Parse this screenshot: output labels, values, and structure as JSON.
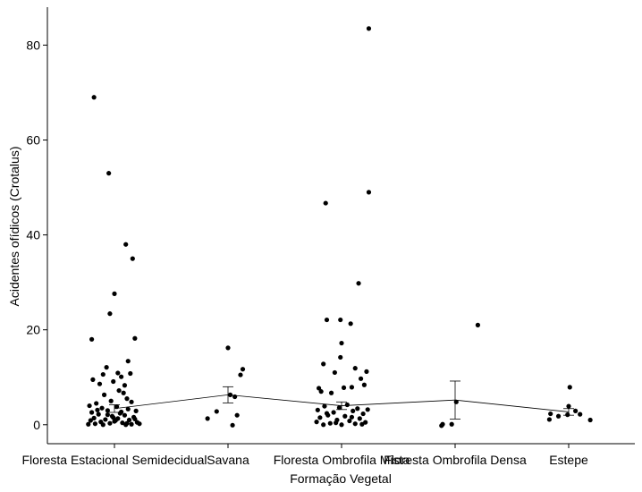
{
  "chart_data": {
    "type": "scatter",
    "xlabel": "Formação Vegetal",
    "ylabel": "Acidentes ofídicos (Crotalus)",
    "categories": [
      "Floresta Estacional Semidecidual",
      "Savana",
      "Floresta Ombrofila Mista",
      "Floresta Ombrofila Densa",
      "Estepe"
    ],
    "yticks": [
      0,
      20,
      40,
      60,
      80
    ],
    "ylim": [
      -4,
      88
    ],
    "grid": false,
    "mean_line": {
      "means": [
        3.4,
        6.3,
        4.0,
        5.2,
        2.7
      ],
      "ci_low": [
        2.6,
        4.6,
        3.2,
        1.2,
        2.0
      ],
      "ci_high": [
        4.2,
        8.0,
        4.8,
        9.2,
        3.4
      ]
    },
    "points": [
      {
        "cat": 0,
        "dx": -0.18,
        "y": 69
      },
      {
        "cat": 0,
        "dx": -0.05,
        "y": 53
      },
      {
        "cat": 0,
        "dx": 0.1,
        "y": 38
      },
      {
        "cat": 0,
        "dx": 0.16,
        "y": 35
      },
      {
        "cat": 0,
        "dx": 0.0,
        "y": 27.6
      },
      {
        "cat": 0,
        "dx": -0.04,
        "y": 23.4
      },
      {
        "cat": 0,
        "dx": -0.2,
        "y": 18
      },
      {
        "cat": 0,
        "dx": 0.18,
        "y": 18.2
      },
      {
        "cat": 0,
        "dx": 0.12,
        "y": 13.4
      },
      {
        "cat": 0,
        "dx": -0.07,
        "y": 12.1
      },
      {
        "cat": 0,
        "dx": -0.1,
        "y": 10.6
      },
      {
        "cat": 0,
        "dx": 0.03,
        "y": 10.9
      },
      {
        "cat": 0,
        "dx": 0.14,
        "y": 10.8
      },
      {
        "cat": 0,
        "dx": -0.19,
        "y": 9.5
      },
      {
        "cat": 0,
        "dx": -0.01,
        "y": 9.1
      },
      {
        "cat": 0,
        "dx": 0.06,
        "y": 10.1
      },
      {
        "cat": 0,
        "dx": -0.13,
        "y": 8.6
      },
      {
        "cat": 0,
        "dx": 0.09,
        "y": 8.3
      },
      {
        "cat": 0,
        "dx": 0.04,
        "y": 7.2
      },
      {
        "cat": 0,
        "dx": 0.08,
        "y": 6.7
      },
      {
        "cat": 0,
        "dx": -0.09,
        "y": 6.3
      },
      {
        "cat": 0,
        "dx": 0.11,
        "y": 5.5
      },
      {
        "cat": 0,
        "dx": -0.03,
        "y": 5.0
      },
      {
        "cat": 0,
        "dx": -0.16,
        "y": 4.5
      },
      {
        "cat": 0,
        "dx": 0.15,
        "y": 4.8
      },
      {
        "cat": 0,
        "dx": -0.22,
        "y": 4.0
      },
      {
        "cat": 0,
        "dx": 0.02,
        "y": 3.8
      },
      {
        "cat": 0,
        "dx": -0.11,
        "y": 3.5
      },
      {
        "cat": 0,
        "dx": 0.12,
        "y": 3.3
      },
      {
        "cat": 0,
        "dx": -0.06,
        "y": 3.0
      },
      {
        "cat": 0,
        "dx": 0.19,
        "y": 2.9
      },
      {
        "cat": 0,
        "dx": -0.2,
        "y": 2.6
      },
      {
        "cat": 0,
        "dx": 0.05,
        "y": 2.4
      },
      {
        "cat": 0,
        "dx": -0.14,
        "y": 2.2
      },
      {
        "cat": 0,
        "dx": 0.09,
        "y": 2.0
      },
      {
        "cat": 0,
        "dx": -0.02,
        "y": 1.8
      },
      {
        "cat": 0,
        "dx": 0.17,
        "y": 1.6
      },
      {
        "cat": 0,
        "dx": -0.18,
        "y": 1.4
      },
      {
        "cat": 0,
        "dx": 0.03,
        "y": 1.3
      },
      {
        "cat": 0,
        "dx": -0.08,
        "y": 1.1
      },
      {
        "cat": 0,
        "dx": 0.13,
        "y": 1.0
      },
      {
        "cat": 0,
        "dx": -0.21,
        "y": 0.9
      },
      {
        "cat": 0,
        "dx": 0.0,
        "y": 0.7
      },
      {
        "cat": 0,
        "dx": -0.12,
        "y": 0.6
      },
      {
        "cat": 0,
        "dx": 0.2,
        "y": 0.5
      },
      {
        "cat": 0,
        "dx": 0.07,
        "y": 0.4
      },
      {
        "cat": 0,
        "dx": -0.04,
        "y": 0.3
      },
      {
        "cat": 0,
        "dx": -0.17,
        "y": 0.2
      },
      {
        "cat": 0,
        "dx": 0.15,
        "y": 0.1
      },
      {
        "cat": 0,
        "dx": -0.1,
        "y": 0.0
      },
      {
        "cat": 0,
        "dx": 0.1,
        "y": 0.0
      },
      {
        "cat": 0,
        "dx": -0.23,
        "y": 0.1
      },
      {
        "cat": 0,
        "dx": 0.22,
        "y": 0.2
      },
      {
        "cat": 0,
        "dx": -0.01,
        "y": 1.5
      },
      {
        "cat": 0,
        "dx": 0.06,
        "y": 2.7
      },
      {
        "cat": 0,
        "dx": -0.15,
        "y": 3.1
      },
      {
        "cat": 0,
        "dx": 0.01,
        "y": 0.9
      },
      {
        "cat": 0,
        "dx": 0.18,
        "y": 1.2
      },
      {
        "cat": 0,
        "dx": -0.06,
        "y": 2.1
      },
      {
        "cat": 0,
        "dx": 0.11,
        "y": 0.3
      },
      {
        "cat": 1,
        "dx": -0.18,
        "y": 1.3
      },
      {
        "cat": 1,
        "dx": -0.1,
        "y": 2.8
      },
      {
        "cat": 1,
        "dx": 0.0,
        "y": 16.2
      },
      {
        "cat": 1,
        "dx": 0.13,
        "y": 11.7
      },
      {
        "cat": 1,
        "dx": 0.11,
        "y": 10.5
      },
      {
        "cat": 1,
        "dx": 0.02,
        "y": 6.3
      },
      {
        "cat": 1,
        "dx": 0.06,
        "y": 5.9
      },
      {
        "cat": 1,
        "dx": 0.08,
        "y": 2.0
      },
      {
        "cat": 1,
        "dx": 0.04,
        "y": -0.1
      },
      {
        "cat": 2,
        "dx": 0.24,
        "y": 83.5
      },
      {
        "cat": 2,
        "dx": 0.24,
        "y": 49
      },
      {
        "cat": 2,
        "dx": -0.14,
        "y": 46.7
      },
      {
        "cat": 2,
        "dx": 0.15,
        "y": 29.8
      },
      {
        "cat": 2,
        "dx": -0.13,
        "y": 22.1
      },
      {
        "cat": 2,
        "dx": -0.01,
        "y": 22.1
      },
      {
        "cat": 2,
        "dx": 0.08,
        "y": 21.3
      },
      {
        "cat": 2,
        "dx": 0.0,
        "y": 17.2
      },
      {
        "cat": 2,
        "dx": -0.01,
        "y": 14.2
      },
      {
        "cat": 2,
        "dx": -0.16,
        "y": 12.8
      },
      {
        "cat": 2,
        "dx": 0.12,
        "y": 11.9
      },
      {
        "cat": 2,
        "dx": -0.06,
        "y": 11.0
      },
      {
        "cat": 2,
        "dx": 0.22,
        "y": 11.2
      },
      {
        "cat": 2,
        "dx": 0.17,
        "y": 9.7
      },
      {
        "cat": 2,
        "dx": -0.2,
        "y": 7.7
      },
      {
        "cat": 2,
        "dx": 0.02,
        "y": 7.8
      },
      {
        "cat": 2,
        "dx": 0.09,
        "y": 7.9
      },
      {
        "cat": 2,
        "dx": -0.18,
        "y": 7.0
      },
      {
        "cat": 2,
        "dx": -0.09,
        "y": 6.7
      },
      {
        "cat": 2,
        "dx": 0.2,
        "y": 8.4
      },
      {
        "cat": 2,
        "dx": 0.05,
        "y": 4.2
      },
      {
        "cat": 2,
        "dx": -0.15,
        "y": 3.9
      },
      {
        "cat": 2,
        "dx": -0.02,
        "y": 3.6
      },
      {
        "cat": 2,
        "dx": 0.14,
        "y": 3.4
      },
      {
        "cat": 2,
        "dx": -0.21,
        "y": 3.1
      },
      {
        "cat": 2,
        "dx": 0.1,
        "y": 2.9
      },
      {
        "cat": 2,
        "dx": -0.07,
        "y": 2.6
      },
      {
        "cat": 2,
        "dx": 0.19,
        "y": 2.3
      },
      {
        "cat": 2,
        "dx": -0.12,
        "y": 2.0
      },
      {
        "cat": 2,
        "dx": 0.03,
        "y": 1.8
      },
      {
        "cat": 2,
        "dx": -0.19,
        "y": 1.5
      },
      {
        "cat": 2,
        "dx": 0.16,
        "y": 1.3
      },
      {
        "cat": 2,
        "dx": -0.04,
        "y": 1.0
      },
      {
        "cat": 2,
        "dx": 0.07,
        "y": 0.8
      },
      {
        "cat": 2,
        "dx": -0.22,
        "y": 0.6
      },
      {
        "cat": 2,
        "dx": 0.21,
        "y": 0.5
      },
      {
        "cat": 2,
        "dx": -0.1,
        "y": 0.3
      },
      {
        "cat": 2,
        "dx": 0.12,
        "y": 0.2
      },
      {
        "cat": 2,
        "dx": -0.16,
        "y": 0.0
      },
      {
        "cat": 2,
        "dx": 0.0,
        "y": 0.0
      },
      {
        "cat": 2,
        "dx": 0.18,
        "y": 0.1
      },
      {
        "cat": 2,
        "dx": -0.05,
        "y": 0.4
      },
      {
        "cat": 2,
        "dx": 0.09,
        "y": 1.6
      },
      {
        "cat": 2,
        "dx": -0.13,
        "y": 2.4
      },
      {
        "cat": 2,
        "dx": 0.23,
        "y": 3.2
      },
      {
        "cat": 3,
        "dx": -0.12,
        "y": -0.2
      },
      {
        "cat": 3,
        "dx": -0.11,
        "y": 0.1
      },
      {
        "cat": 3,
        "dx": -0.03,
        "y": 0.1
      },
      {
        "cat": 3,
        "dx": 0.01,
        "y": 4.8
      },
      {
        "cat": 3,
        "dx": 0.2,
        "y": 21
      },
      {
        "cat": 4,
        "dx": -0.17,
        "y": 1.1
      },
      {
        "cat": 4,
        "dx": -0.16,
        "y": 2.3
      },
      {
        "cat": 4,
        "dx": -0.09,
        "y": 1.8
      },
      {
        "cat": 4,
        "dx": -0.01,
        "y": 2.1
      },
      {
        "cat": 4,
        "dx": 0.0,
        "y": 3.9
      },
      {
        "cat": 4,
        "dx": 0.01,
        "y": 7.9
      },
      {
        "cat": 4,
        "dx": 0.06,
        "y": 2.9
      },
      {
        "cat": 4,
        "dx": 0.1,
        "y": 2.2
      },
      {
        "cat": 4,
        "dx": 0.19,
        "y": 1.0
      }
    ]
  }
}
